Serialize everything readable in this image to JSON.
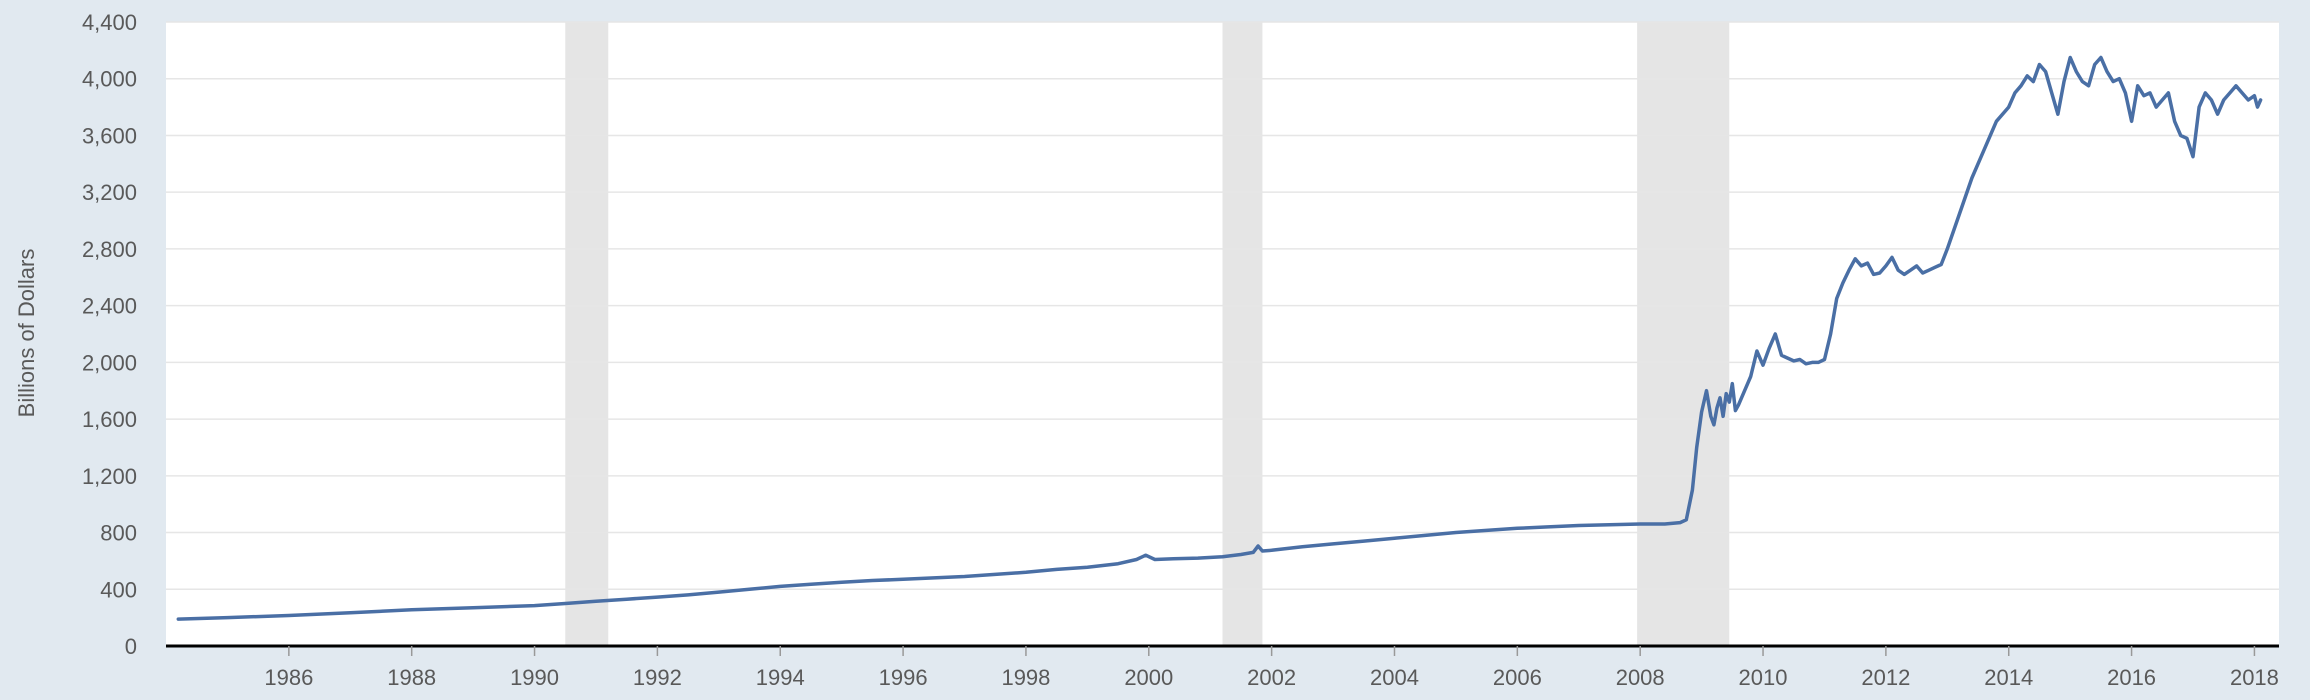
{
  "chart_data": {
    "type": "line",
    "title": "",
    "xlabel": "",
    "ylabel": "Billions of Dollars",
    "xlim": [
      1984.0,
      2018.4
    ],
    "ylim": [
      0,
      4400
    ],
    "grid": true,
    "legend": "none",
    "y_ticks": [
      "0",
      "400",
      "800",
      "1,200",
      "1,600",
      "2,000",
      "2,400",
      "2,800",
      "3,200",
      "3,600",
      "4,000",
      "4,400"
    ],
    "y_tick_values": [
      0,
      400,
      800,
      1200,
      1600,
      2000,
      2400,
      2800,
      3200,
      3600,
      4000,
      4400
    ],
    "x_ticks": [
      "1986",
      "1988",
      "1990",
      "1992",
      "1994",
      "1996",
      "1998",
      "2000",
      "2002",
      "2004",
      "2006",
      "2008",
      "2010",
      "2012",
      "2014",
      "2016",
      "2018"
    ],
    "x_tick_values": [
      1986,
      1988,
      1990,
      1992,
      1994,
      1996,
      1998,
      2000,
      2002,
      2004,
      2006,
      2008,
      2010,
      2012,
      2014,
      2016,
      2018
    ],
    "recessions": [
      [
        1990.5,
        1991.2
      ],
      [
        2001.2,
        2001.85
      ],
      [
        2007.95,
        2009.45
      ]
    ],
    "series": [
      {
        "color": "#4a6fa5",
        "x": [
          1984.2,
          1985.0,
          1986.0,
          1987.0,
          1988.0,
          1989.0,
          1990.0,
          1990.5,
          1991.0,
          1991.5,
          1992.0,
          1992.5,
          1993.0,
          1993.5,
          1994.0,
          1994.5,
          1995.0,
          1995.5,
          1996.0,
          1996.5,
          1997.0,
          1997.5,
          1998.0,
          1998.5,
          1999.0,
          1999.5,
          1999.8,
          1999.95,
          2000.1,
          2000.4,
          2000.8,
          2001.2,
          2001.5,
          2001.7,
          2001.78,
          2001.85,
          2002.0,
          2002.5,
          2003.0,
          2003.5,
          2004.0,
          2004.5,
          2005.0,
          2005.5,
          2006.0,
          2006.5,
          2007.0,
          2007.5,
          2008.0,
          2008.4,
          2008.65,
          2008.75,
          2008.85,
          2008.92,
          2009.0,
          2009.08,
          2009.15,
          2009.2,
          2009.25,
          2009.3,
          2009.35,
          2009.4,
          2009.45,
          2009.5,
          2009.55,
          2009.6,
          2009.7,
          2009.8,
          2009.9,
          2010.0,
          2010.1,
          2010.2,
          2010.3,
          2010.4,
          2010.5,
          2010.6,
          2010.7,
          2010.8,
          2010.9,
          2011.0,
          2011.1,
          2011.2,
          2011.3,
          2011.4,
          2011.5,
          2011.6,
          2011.7,
          2011.8,
          2011.9,
          2012.0,
          2012.1,
          2012.2,
          2012.3,
          2012.4,
          2012.5,
          2012.6,
          2012.7,
          2012.8,
          2012.9,
          2013.0,
          2013.2,
          2013.4,
          2013.6,
          2013.8,
          2014.0,
          2014.1,
          2014.2,
          2014.3,
          2014.4,
          2014.5,
          2014.6,
          2014.7,
          2014.8,
          2014.9,
          2015.0,
          2015.1,
          2015.2,
          2015.3,
          2015.4,
          2015.5,
          2015.6,
          2015.7,
          2015.8,
          2015.9,
          2016.0,
          2016.1,
          2016.2,
          2016.3,
          2016.4,
          2016.5,
          2016.6,
          2016.7,
          2016.8,
          2016.9,
          2017.0,
          2017.1,
          2017.2,
          2017.3,
          2017.4,
          2017.5,
          2017.6,
          2017.7,
          2017.8,
          2017.9,
          2018.0,
          2018.05,
          2018.1
        ],
        "y": [
          190,
          200,
          215,
          235,
          255,
          270,
          285,
          300,
          315,
          330,
          345,
          360,
          380,
          400,
          420,
          435,
          450,
          462,
          470,
          480,
          490,
          505,
          520,
          540,
          555,
          580,
          610,
          640,
          610,
          615,
          620,
          630,
          645,
          660,
          705,
          670,
          675,
          700,
          720,
          740,
          760,
          780,
          800,
          815,
          830,
          840,
          850,
          855,
          860,
          860,
          870,
          890,
          1100,
          1400,
          1650,
          1800,
          1620,
          1560,
          1680,
          1750,
          1620,
          1780,
          1720,
          1850,
          1660,
          1700,
          1800,
          1900,
          2080,
          1980,
          2100,
          2200,
          2050,
          2030,
          2010,
          2020,
          1990,
          2000,
          2000,
          2020,
          2200,
          2450,
          2560,
          2650,
          2730,
          2680,
          2700,
          2620,
          2630,
          2680,
          2740,
          2650,
          2620,
          2650,
          2680,
          2630,
          2650,
          2670,
          2690,
          2800,
          3050,
          3300,
          3500,
          3700,
          3800,
          3900,
          3950,
          4020,
          3980,
          4100,
          4050,
          3900,
          3750,
          3980,
          4150,
          4050,
          3980,
          3950,
          4100,
          4150,
          4050,
          3980,
          4000,
          3900,
          3700,
          3950,
          3880,
          3900,
          3800,
          3850,
          3900,
          3700,
          3600,
          3580,
          3450,
          3800,
          3900,
          3850,
          3750,
          3850,
          3900,
          3950,
          3900,
          3850,
          3880,
          3800,
          3850
        ]
      }
    ]
  }
}
